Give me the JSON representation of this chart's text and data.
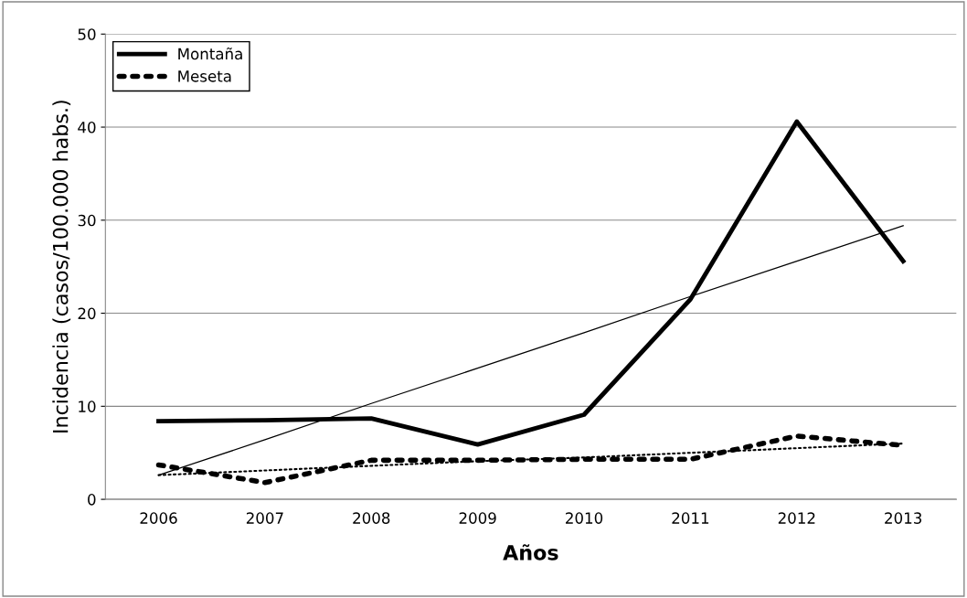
{
  "chart_data": {
    "type": "line",
    "xlabel": "Años",
    "ylabel": "Incidencia (casos/100.000 habs.)",
    "categories": [
      "2006",
      "2007",
      "2008",
      "2009",
      "2010",
      "2011",
      "2012",
      "2013"
    ],
    "series": [
      {
        "name": "Montaña",
        "color": "#000000",
        "line_style": "solid",
        "values": [
          8.4,
          8.5,
          8.7,
          5.9,
          9.1,
          21.5,
          40.6,
          25.6
        ]
      },
      {
        "name": "Meseta",
        "color": "#000000",
        "line_style": "dotted",
        "values": [
          3.7,
          1.8,
          4.2,
          4.2,
          4.3,
          4.3,
          6.8,
          5.8
        ]
      },
      {
        "color": "#000000",
        "line_style": "solid",
        "values": [
          2.6,
          6.4,
          10.3,
          14.1,
          17.9,
          21.8,
          25.6,
          29.4
        ]
      },
      {
        "color": "#000000",
        "line_style": "dotted",
        "values": [
          2.6,
          3.1,
          3.6,
          4.1,
          4.5,
          5.0,
          5.5,
          6.0
        ]
      }
    ],
    "ylim": [
      0,
      50
    ],
    "yticks": [
      0,
      10,
      20,
      30,
      40,
      50
    ],
    "grid": "y",
    "legend": "top left",
    "marker": "none"
  }
}
